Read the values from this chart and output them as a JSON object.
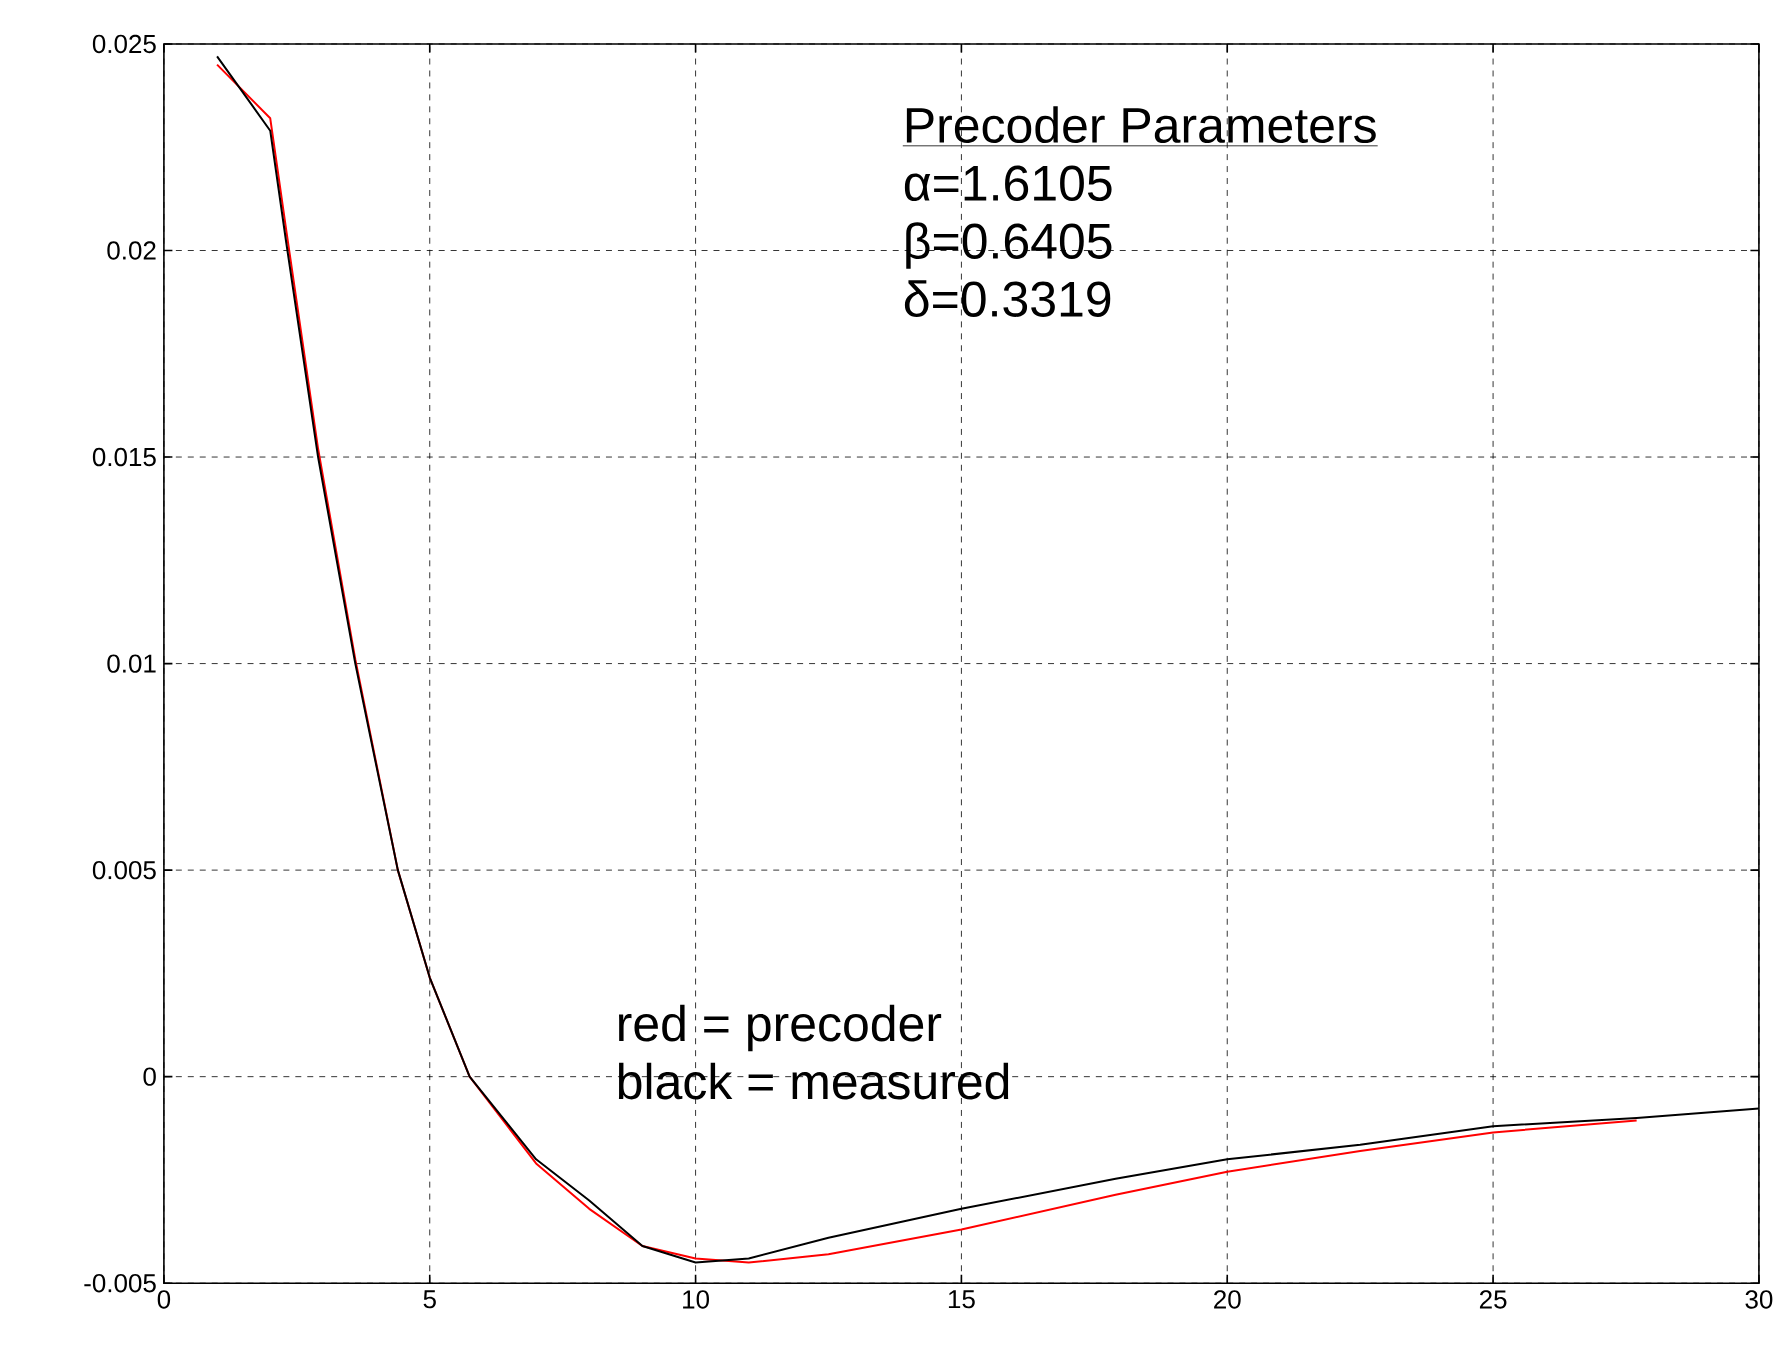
{
  "chart_data": {
    "type": "line",
    "xlim": [
      0,
      30
    ],
    "ylim": [
      -0.005,
      0.025
    ],
    "xticks": [
      0,
      5,
      10,
      15,
      20,
      25,
      30
    ],
    "yticks": [
      -0.005,
      0,
      0.005,
      0.01,
      0.015,
      0.02,
      0.025
    ],
    "grid": true,
    "line_style": "solid",
    "marker": "none",
    "annotations": [
      "Precoder Parameters",
      "α=1.6105",
      "β=0.6405",
      "δ=0.3319",
      "red = precoder",
      "black = measured"
    ],
    "series": [
      {
        "color": "#ff0000",
        "x": [
          1,
          2,
          2.3,
          2.9,
          3.6,
          4.4,
          5,
          5.75,
          7,
          8,
          9,
          10,
          11,
          12.5,
          15,
          17.9,
          20,
          22.5,
          25,
          27.7
        ],
        "values": [
          0.0245,
          0.0232,
          0.0205,
          0.0152,
          0.0101,
          0.005,
          0.0024,
          0.0,
          -0.0021,
          -0.0032,
          -0.0041,
          -0.0044,
          -0.0045,
          -0.0043,
          -0.0037,
          -0.00286,
          -0.0023,
          -0.0018,
          -0.00135,
          -0.00106
        ]
      },
      {
        "color": "#000000",
        "x": [
          1,
          2,
          2.3,
          2.9,
          3.6,
          4.4,
          5,
          5.75,
          7,
          8,
          9,
          10,
          11,
          12.5,
          15,
          17.9,
          20,
          22.5,
          25,
          27.7,
          30
        ],
        "values": [
          0.0247,
          0.0229,
          0.0202,
          0.015,
          0.01,
          0.005,
          0.0024,
          0.0,
          -0.002,
          -0.003,
          -0.0041,
          -0.0045,
          -0.0044,
          -0.0039,
          -0.0032,
          -0.00247,
          -0.002,
          -0.00165,
          -0.0012,
          -0.001,
          -0.00077
        ]
      }
    ]
  }
}
